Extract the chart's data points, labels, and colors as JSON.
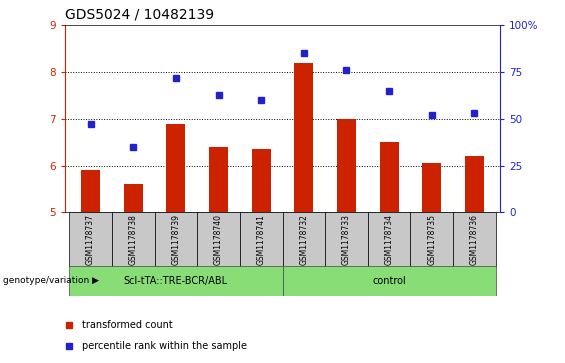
{
  "title": "GDS5024 / 10482139",
  "samples": [
    "GSM1178737",
    "GSM1178738",
    "GSM1178739",
    "GSM1178740",
    "GSM1178741",
    "GSM1178732",
    "GSM1178733",
    "GSM1178734",
    "GSM1178735",
    "GSM1178736"
  ],
  "red_values": [
    5.9,
    5.6,
    6.9,
    6.4,
    6.35,
    8.2,
    7.0,
    6.5,
    6.05,
    6.2
  ],
  "blue_values": [
    47,
    35,
    72,
    63,
    60,
    85,
    76,
    65,
    52,
    53
  ],
  "ylim": [
    5,
    9
  ],
  "yticks_left": [
    5,
    6,
    7,
    8,
    9
  ],
  "yticks_right": [
    0,
    25,
    50,
    75,
    100
  ],
  "red_color": "#CC2200",
  "blue_color": "#2222CC",
  "bar_bottom": 5,
  "group1_label": "Scl-tTA::TRE-BCR/ABL",
  "group2_label": "control",
  "group1_indices": [
    0,
    1,
    2,
    3,
    4
  ],
  "group2_indices": [
    5,
    6,
    7,
    8,
    9
  ],
  "group_bg_color": "#88DD77",
  "sample_bg_color": "#C8C8C8",
  "legend_red": "transformed count",
  "legend_blue": "percentile rank within the sample",
  "genotype_label": "genotype/variation",
  "title_fontsize": 10,
  "tick_fontsize": 7.5,
  "sample_fontsize": 5.5,
  "group_fontsize": 7,
  "legend_fontsize": 7
}
